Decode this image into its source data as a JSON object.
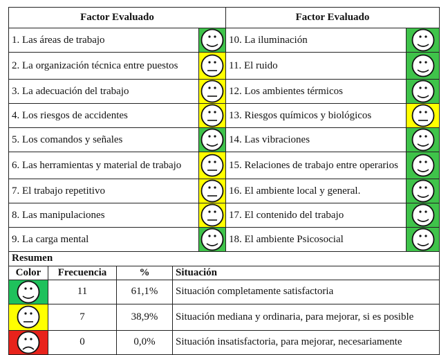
{
  "header": {
    "left": "Factor Evaluado",
    "right": "Factor Evaluado"
  },
  "rows": [
    {
      "left": {
        "label": "1.  Las áreas de trabajo",
        "face": "happy",
        "color": "green"
      },
      "right": {
        "label": "10. La iluminación",
        "face": "happy",
        "color": "green"
      }
    },
    {
      "left": {
        "label": "2.  La organización técnica entre puestos",
        "face": "neutral",
        "color": "yellow"
      },
      "right": {
        "label": "11. El ruido",
        "face": "happy",
        "color": "green"
      }
    },
    {
      "left": {
        "label": "3.  La adecuación del trabajo",
        "face": "neutral",
        "color": "yellow"
      },
      "right": {
        "label": "12. Los ambientes térmicos",
        "face": "happy",
        "color": "green"
      }
    },
    {
      "left": {
        "label": "4.  Los riesgos de accidentes",
        "face": "neutral",
        "color": "yellow"
      },
      "right": {
        "label": "13. Riesgos químicos y biológicos",
        "face": "neutral",
        "color": "yellow"
      }
    },
    {
      "left": {
        "label": "5.  Los comandos y señales",
        "face": "happy",
        "color": "green"
      },
      "right": {
        "label": "14. Las vibraciones",
        "face": "happy",
        "color": "green"
      }
    },
    {
      "left": {
        "label": "6.  Las herramientas y material de trabajo",
        "face": "neutral",
        "color": "yellow"
      },
      "right": {
        "label": "15. Relaciones de trabajo entre operarios",
        "face": "happy",
        "color": "green"
      }
    },
    {
      "left": {
        "label": "7.  El trabajo repetitivo",
        "face": "neutral",
        "color": "yellow"
      },
      "right": {
        "label": "16. El ambiente local y general.",
        "face": "happy",
        "color": "green"
      }
    },
    {
      "left": {
        "label": "8.  Las manipulaciones",
        "face": "neutral",
        "color": "yellow"
      },
      "right": {
        "label": "17. El contenido del trabajo",
        "face": "happy",
        "color": "green"
      }
    },
    {
      "left": {
        "label": "9.  La carga mental",
        "face": "happy",
        "color": "green"
      },
      "right": {
        "label": "18. El ambiente Psicosocial",
        "face": "happy",
        "color": "green"
      }
    }
  ],
  "summary": {
    "title": "Resumen",
    "columns": [
      "Color",
      "Frecuencia",
      "%",
      "Situación"
    ],
    "rows": [
      {
        "face": "happy",
        "color": "green",
        "frequency": "11",
        "percent": "61,1%",
        "situation": "Situación completamente satisfactoria"
      },
      {
        "face": "neutral",
        "color": "yellow",
        "frequency": "7",
        "percent": "38,9%",
        "situation": "Situación mediana y ordinaria, para mejorar, si es posible"
      },
      {
        "face": "sad",
        "color": "red",
        "frequency": "0",
        "percent": "0,0%",
        "situation": "Situación insatisfactoria, para mejorar, necesariamente"
      }
    ]
  },
  "colors": {
    "green": "#3fc34a",
    "yellow": "#ffff00",
    "red": "#e8231b"
  }
}
